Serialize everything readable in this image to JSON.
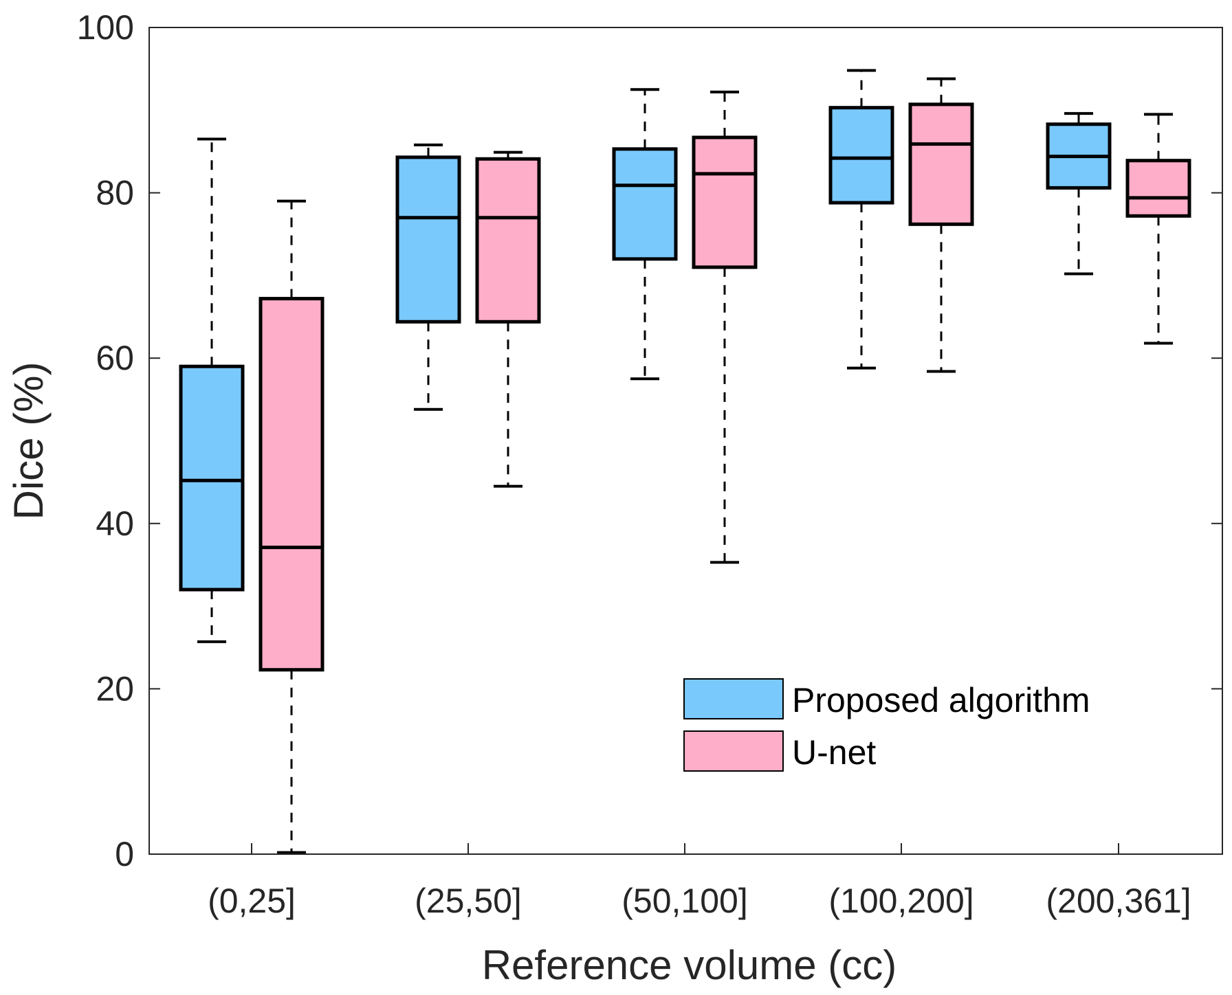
{
  "chart_data": {
    "type": "boxplot",
    "title": "",
    "xlabel": "Reference volume (cc)",
    "ylabel": "Dice (%)",
    "ylim": [
      0,
      100
    ],
    "yticks": [
      0,
      20,
      40,
      60,
      80,
      100
    ],
    "grid": false,
    "legend_position": "bottom-right",
    "categories": [
      "(0,25]",
      "(25,50]",
      "(50,100]",
      "(100,200]",
      "(200,361]"
    ],
    "series": [
      {
        "name": "Proposed algorithm",
        "color": "#7ac9fc",
        "boxes": [
          {
            "whisker_low": 25.7,
            "q1": 32.0,
            "median": 45.2,
            "q3": 59.0,
            "whisker_high": 86.5
          },
          {
            "whisker_low": 53.8,
            "q1": 64.4,
            "median": 77.0,
            "q3": 84.3,
            "whisker_high": 85.8
          },
          {
            "whisker_low": 57.5,
            "q1": 72.0,
            "median": 80.9,
            "q3": 85.3,
            "whisker_high": 92.5
          },
          {
            "whisker_low": 58.8,
            "q1": 78.8,
            "median": 84.2,
            "q3": 90.3,
            "whisker_high": 94.8
          },
          {
            "whisker_low": 70.2,
            "q1": 80.6,
            "median": 84.4,
            "q3": 88.3,
            "whisker_high": 89.6
          }
        ]
      },
      {
        "name": "U-net",
        "color": "#ffaec9",
        "boxes": [
          {
            "whisker_low": 0.2,
            "q1": 22.3,
            "median": 37.1,
            "q3": 67.2,
            "whisker_high": 79.0
          },
          {
            "whisker_low": 44.5,
            "q1": 64.4,
            "median": 77.0,
            "q3": 84.1,
            "whisker_high": 84.9
          },
          {
            "whisker_low": 35.3,
            "q1": 71.0,
            "median": 82.3,
            "q3": 86.7,
            "whisker_high": 92.2
          },
          {
            "whisker_low": 58.4,
            "q1": 76.2,
            "median": 85.9,
            "q3": 90.7,
            "whisker_high": 93.8
          },
          {
            "whisker_low": 61.8,
            "q1": 77.2,
            "median": 79.4,
            "q3": 83.9,
            "whisker_high": 89.5
          }
        ]
      }
    ]
  }
}
